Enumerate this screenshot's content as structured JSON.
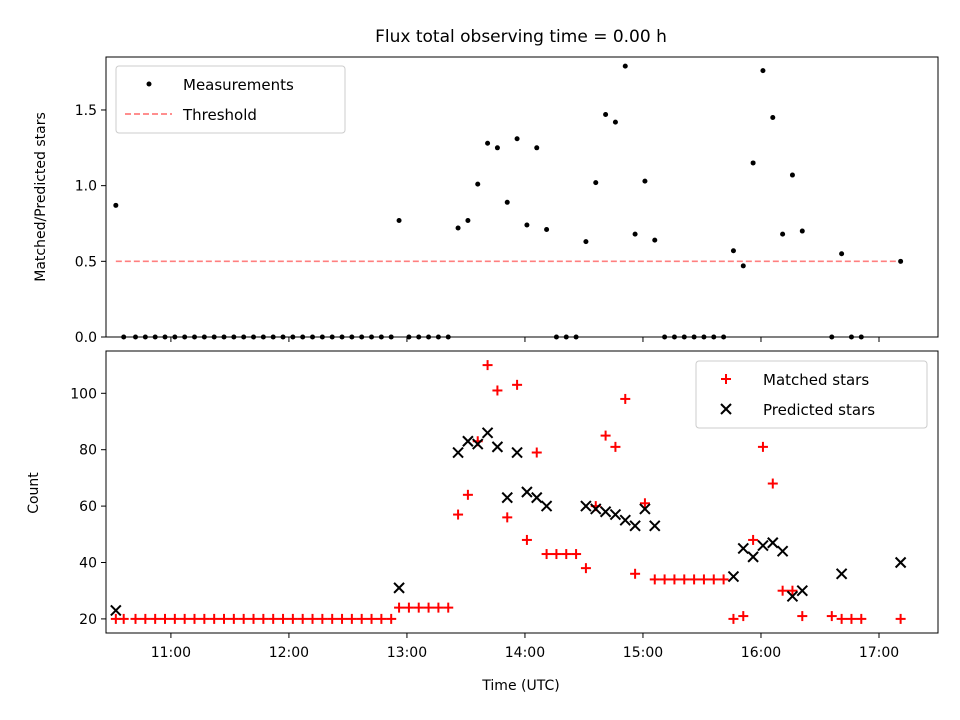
{
  "chart_data": [
    {
      "type": "scatter",
      "title": "Flux total observing time = 0.00 h",
      "xlabel": "",
      "ylabel": "Matched/Predicted stars",
      "xlim": [
        "10:27",
        "17:30"
      ],
      "ylim": [
        0,
        1.85
      ],
      "yticks": [
        0.0,
        0.5,
        1.0,
        1.5
      ],
      "ytick_labels": [
        "0.0",
        "0.5",
        "1.0",
        "1.5"
      ],
      "legend_position": "top-left",
      "series": [
        {
          "name": "Measurements",
          "color": "#000000",
          "marker": "dot",
          "points": [
            {
              "x": "10:32",
              "y": 0.87
            },
            {
              "x": "10:36",
              "y": 0.0
            },
            {
              "x": "10:42",
              "y": 0.0
            },
            {
              "x": "10:47",
              "y": 0.0
            },
            {
              "x": "10:52",
              "y": 0.0
            },
            {
              "x": "10:57",
              "y": 0.0
            },
            {
              "x": "11:02",
              "y": 0.0
            },
            {
              "x": "11:07",
              "y": 0.0
            },
            {
              "x": "11:12",
              "y": 0.0
            },
            {
              "x": "11:17",
              "y": 0.0
            },
            {
              "x": "11:22",
              "y": 0.0
            },
            {
              "x": "11:27",
              "y": 0.0
            },
            {
              "x": "11:32",
              "y": 0.0
            },
            {
              "x": "11:37",
              "y": 0.0
            },
            {
              "x": "11:42",
              "y": 0.0
            },
            {
              "x": "11:47",
              "y": 0.0
            },
            {
              "x": "11:52",
              "y": 0.0
            },
            {
              "x": "11:57",
              "y": 0.0
            },
            {
              "x": "12:02",
              "y": 0.0
            },
            {
              "x": "12:07",
              "y": 0.0
            },
            {
              "x": "12:12",
              "y": 0.0
            },
            {
              "x": "12:17",
              "y": 0.0
            },
            {
              "x": "12:22",
              "y": 0.0
            },
            {
              "x": "12:27",
              "y": 0.0
            },
            {
              "x": "12:32",
              "y": 0.0
            },
            {
              "x": "12:37",
              "y": 0.0
            },
            {
              "x": "12:42",
              "y": 0.0
            },
            {
              "x": "12:47",
              "y": 0.0
            },
            {
              "x": "12:52",
              "y": 0.0
            },
            {
              "x": "12:56",
              "y": 0.77
            },
            {
              "x": "13:01",
              "y": 0.0
            },
            {
              "x": "13:06",
              "y": 0.0
            },
            {
              "x": "13:11",
              "y": 0.0
            },
            {
              "x": "13:16",
              "y": 0.0
            },
            {
              "x": "13:21",
              "y": 0.0
            },
            {
              "x": "13:26",
              "y": 0.72
            },
            {
              "x": "13:31",
              "y": 0.77
            },
            {
              "x": "13:36",
              "y": 1.01
            },
            {
              "x": "13:41",
              "y": 1.28
            },
            {
              "x": "13:46",
              "y": 1.25
            },
            {
              "x": "13:51",
              "y": 0.89
            },
            {
              "x": "13:56",
              "y": 1.31
            },
            {
              "x": "14:01",
              "y": 0.74
            },
            {
              "x": "14:06",
              "y": 1.25
            },
            {
              "x": "14:11",
              "y": 0.71
            },
            {
              "x": "14:16",
              "y": 0.0
            },
            {
              "x": "14:21",
              "y": 0.0
            },
            {
              "x": "14:26",
              "y": 0.0
            },
            {
              "x": "14:31",
              "y": 0.63
            },
            {
              "x": "14:36",
              "y": 1.02
            },
            {
              "x": "14:41",
              "y": 1.47
            },
            {
              "x": "14:46",
              "y": 1.42
            },
            {
              "x": "14:51",
              "y": 1.79
            },
            {
              "x": "14:56",
              "y": 0.68
            },
            {
              "x": "15:01",
              "y": 1.03
            },
            {
              "x": "15:06",
              "y": 0.64
            },
            {
              "x": "15:11",
              "y": 0.0
            },
            {
              "x": "15:16",
              "y": 0.0
            },
            {
              "x": "15:21",
              "y": 0.0
            },
            {
              "x": "15:26",
              "y": 0.0
            },
            {
              "x": "15:31",
              "y": 0.0
            },
            {
              "x": "15:36",
              "y": 0.0
            },
            {
              "x": "15:41",
              "y": 0.0
            },
            {
              "x": "15:46",
              "y": 0.57
            },
            {
              "x": "15:51",
              "y": 0.47
            },
            {
              "x": "15:56",
              "y": 1.15
            },
            {
              "x": "16:01",
              "y": 1.76
            },
            {
              "x": "16:06",
              "y": 1.45
            },
            {
              "x": "16:11",
              "y": 0.68
            },
            {
              "x": "16:16",
              "y": 1.07
            },
            {
              "x": "16:21",
              "y": 0.7
            },
            {
              "x": "16:36",
              "y": 0.0
            },
            {
              "x": "16:41",
              "y": 0.55
            },
            {
              "x": "16:46",
              "y": 0.0
            },
            {
              "x": "16:51",
              "y": 0.0
            },
            {
              "x": "17:11",
              "y": 0.5
            }
          ]
        },
        {
          "name": "Threshold",
          "color": "#ff7f7f",
          "marker": "dashed-line",
          "points": [
            {
              "x": "10:32",
              "y": 0.5
            },
            {
              "x": "17:11",
              "y": 0.5
            }
          ]
        }
      ]
    },
    {
      "type": "scatter",
      "title": "",
      "xlabel": "Time (UTC)",
      "ylabel": "Count",
      "xlim": [
        "10:27",
        "17:30"
      ],
      "ylim": [
        15,
        115
      ],
      "xticks": [
        "11:00",
        "12:00",
        "13:00",
        "14:00",
        "15:00",
        "16:00",
        "17:00"
      ],
      "yticks": [
        20,
        40,
        60,
        80,
        100
      ],
      "ytick_labels": [
        "20",
        "40",
        "60",
        "80",
        "100"
      ],
      "legend_position": "top-right",
      "series": [
        {
          "name": "Matched stars",
          "color": "#ff0000",
          "marker": "plus",
          "points": [
            {
              "x": "10:32",
              "y": 20
            },
            {
              "x": "10:36",
              "y": 20
            },
            {
              "x": "10:42",
              "y": 20
            },
            {
              "x": "10:47",
              "y": 20
            },
            {
              "x": "10:52",
              "y": 20
            },
            {
              "x": "10:57",
              "y": 20
            },
            {
              "x": "11:02",
              "y": 20
            },
            {
              "x": "11:07",
              "y": 20
            },
            {
              "x": "11:12",
              "y": 20
            },
            {
              "x": "11:17",
              "y": 20
            },
            {
              "x": "11:22",
              "y": 20
            },
            {
              "x": "11:27",
              "y": 20
            },
            {
              "x": "11:32",
              "y": 20
            },
            {
              "x": "11:37",
              "y": 20
            },
            {
              "x": "11:42",
              "y": 20
            },
            {
              "x": "11:47",
              "y": 20
            },
            {
              "x": "11:52",
              "y": 20
            },
            {
              "x": "11:57",
              "y": 20
            },
            {
              "x": "12:02",
              "y": 20
            },
            {
              "x": "12:07",
              "y": 20
            },
            {
              "x": "12:12",
              "y": 20
            },
            {
              "x": "12:17",
              "y": 20
            },
            {
              "x": "12:22",
              "y": 20
            },
            {
              "x": "12:27",
              "y": 20
            },
            {
              "x": "12:32",
              "y": 20
            },
            {
              "x": "12:37",
              "y": 20
            },
            {
              "x": "12:42",
              "y": 20
            },
            {
              "x": "12:47",
              "y": 20
            },
            {
              "x": "12:52",
              "y": 20
            },
            {
              "x": "12:56",
              "y": 24
            },
            {
              "x": "13:01",
              "y": 24
            },
            {
              "x": "13:06",
              "y": 24
            },
            {
              "x": "13:11",
              "y": 24
            },
            {
              "x": "13:16",
              "y": 24
            },
            {
              "x": "13:21",
              "y": 24
            },
            {
              "x": "13:26",
              "y": 57
            },
            {
              "x": "13:31",
              "y": 64
            },
            {
              "x": "13:36",
              "y": 83
            },
            {
              "x": "13:41",
              "y": 110
            },
            {
              "x": "13:46",
              "y": 101
            },
            {
              "x": "13:51",
              "y": 56
            },
            {
              "x": "13:56",
              "y": 103
            },
            {
              "x": "14:01",
              "y": 48
            },
            {
              "x": "14:06",
              "y": 79
            },
            {
              "x": "14:11",
              "y": 43
            },
            {
              "x": "14:16",
              "y": 43
            },
            {
              "x": "14:21",
              "y": 43
            },
            {
              "x": "14:26",
              "y": 43
            },
            {
              "x": "14:31",
              "y": 38
            },
            {
              "x": "14:36",
              "y": 60
            },
            {
              "x": "14:41",
              "y": 85
            },
            {
              "x": "14:46",
              "y": 81
            },
            {
              "x": "14:51",
              "y": 98
            },
            {
              "x": "14:56",
              "y": 36
            },
            {
              "x": "15:01",
              "y": 61
            },
            {
              "x": "15:06",
              "y": 34
            },
            {
              "x": "15:11",
              "y": 34
            },
            {
              "x": "15:16",
              "y": 34
            },
            {
              "x": "15:21",
              "y": 34
            },
            {
              "x": "15:26",
              "y": 34
            },
            {
              "x": "15:31",
              "y": 34
            },
            {
              "x": "15:36",
              "y": 34
            },
            {
              "x": "15:41",
              "y": 34
            },
            {
              "x": "15:46",
              "y": 20
            },
            {
              "x": "15:51",
              "y": 21
            },
            {
              "x": "15:56",
              "y": 48
            },
            {
              "x": "16:01",
              "y": 81
            },
            {
              "x": "16:06",
              "y": 68
            },
            {
              "x": "16:11",
              "y": 30
            },
            {
              "x": "16:16",
              "y": 30
            },
            {
              "x": "16:21",
              "y": 21
            },
            {
              "x": "16:36",
              "y": 21
            },
            {
              "x": "16:41",
              "y": 20
            },
            {
              "x": "16:46",
              "y": 20
            },
            {
              "x": "16:51",
              "y": 20
            },
            {
              "x": "17:11",
              "y": 20
            }
          ]
        },
        {
          "name": "Predicted stars",
          "color": "#000000",
          "marker": "x",
          "points": [
            {
              "x": "10:32",
              "y": 23
            },
            {
              "x": "12:56",
              "y": 31
            },
            {
              "x": "13:26",
              "y": 79
            },
            {
              "x": "13:31",
              "y": 83
            },
            {
              "x": "13:36",
              "y": 82
            },
            {
              "x": "13:41",
              "y": 86
            },
            {
              "x": "13:46",
              "y": 81
            },
            {
              "x": "13:51",
              "y": 63
            },
            {
              "x": "13:56",
              "y": 79
            },
            {
              "x": "14:01",
              "y": 65
            },
            {
              "x": "14:06",
              "y": 63
            },
            {
              "x": "14:11",
              "y": 60
            },
            {
              "x": "14:31",
              "y": 60
            },
            {
              "x": "14:36",
              "y": 59
            },
            {
              "x": "14:41",
              "y": 58
            },
            {
              "x": "14:46",
              "y": 57
            },
            {
              "x": "14:51",
              "y": 55
            },
            {
              "x": "14:56",
              "y": 53
            },
            {
              "x": "15:01",
              "y": 59
            },
            {
              "x": "15:06",
              "y": 53
            },
            {
              "x": "15:46",
              "y": 35
            },
            {
              "x": "15:51",
              "y": 45
            },
            {
              "x": "15:56",
              "y": 42
            },
            {
              "x": "16:01",
              "y": 46
            },
            {
              "x": "16:06",
              "y": 47
            },
            {
              "x": "16:11",
              "y": 44
            },
            {
              "x": "16:16",
              "y": 28
            },
            {
              "x": "16:21",
              "y": 30
            },
            {
              "x": "16:41",
              "y": 36
            },
            {
              "x": "17:11",
              "y": 40
            }
          ]
        }
      ]
    }
  ]
}
